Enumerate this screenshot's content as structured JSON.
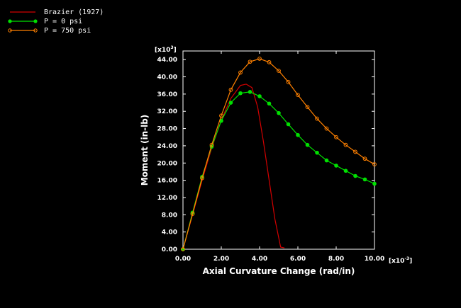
{
  "chart_data": {
    "type": "line",
    "xlabel": "Axial Curvature Change (rad/in)",
    "ylabel": "Moment (in-lb)",
    "x_multiplier": {
      "base": "[x10",
      "exp": "-3",
      "close": "]"
    },
    "y_multiplier": {
      "base": "[x10",
      "exp": "3",
      "close": "]"
    },
    "xlim": [
      0,
      10
    ],
    "ylim": [
      0,
      46
    ],
    "x_ticks": [
      0,
      2,
      4,
      6,
      8,
      10
    ],
    "x_tick_labels": [
      "0.00",
      "2.00",
      "4.00",
      "6.00",
      "8.00",
      "10.00"
    ],
    "y_ticks": [
      0,
      4,
      8,
      12,
      16,
      20,
      24,
      28,
      32,
      36,
      40,
      44
    ],
    "y_tick_labels": [
      "0.00",
      "4.00",
      "8.00",
      "12.00",
      "16.00",
      "20.00",
      "24.00",
      "28.00",
      "32.00",
      "36.00",
      "40.00",
      "44.00"
    ],
    "grid": false,
    "legend_position": "top-left",
    "series": [
      {
        "name": "Brazier (1927)",
        "color": "#d40000",
        "marker": "none",
        "x": [
          0,
          0.5,
          1.0,
          1.5,
          2.0,
          2.5,
          3.0,
          3.3,
          3.6,
          3.9,
          4.2,
          4.5,
          4.8,
          5.1,
          5.3
        ],
        "y": [
          0,
          8,
          16,
          23.5,
          30,
          35,
          38,
          38.3,
          37.5,
          33,
          25,
          16,
          7,
          0.5,
          0.3
        ]
      },
      {
        "name": "P = 0 psi",
        "color": "#00e000",
        "marker": "dot",
        "x": [
          0,
          0.5,
          1.0,
          1.5,
          2.0,
          2.5,
          3.0,
          3.5,
          4.0,
          4.5,
          5.0,
          5.5,
          6.0,
          6.5,
          7.0,
          7.5,
          8.0,
          8.5,
          9.0,
          9.5,
          10.0
        ],
        "y": [
          0,
          8.5,
          16.8,
          23.8,
          29.8,
          34.0,
          36.2,
          36.5,
          35.5,
          33.8,
          31.6,
          29.0,
          26.5,
          24.2,
          22.4,
          20.6,
          19.4,
          18.2,
          17.0,
          16.2,
          15.2
        ]
      },
      {
        "name": "P = 750 psi",
        "color": "#ff8000",
        "marker": "open-circle",
        "x": [
          0,
          0.5,
          1.0,
          1.5,
          2.0,
          2.5,
          3.0,
          3.5,
          4.0,
          4.5,
          5.0,
          5.5,
          6.0,
          6.5,
          7.0,
          7.5,
          8.0,
          8.5,
          9.0,
          9.5,
          10.0
        ],
        "y": [
          0,
          8.2,
          16.5,
          24.2,
          31.0,
          37.0,
          41.0,
          43.5,
          44.2,
          43.4,
          41.4,
          38.8,
          35.8,
          33.0,
          30.3,
          28.0,
          26.0,
          24.2,
          22.6,
          21.0,
          19.7
        ]
      }
    ]
  },
  "colors": {
    "background": "#000000",
    "axes": "#ffffff"
  }
}
